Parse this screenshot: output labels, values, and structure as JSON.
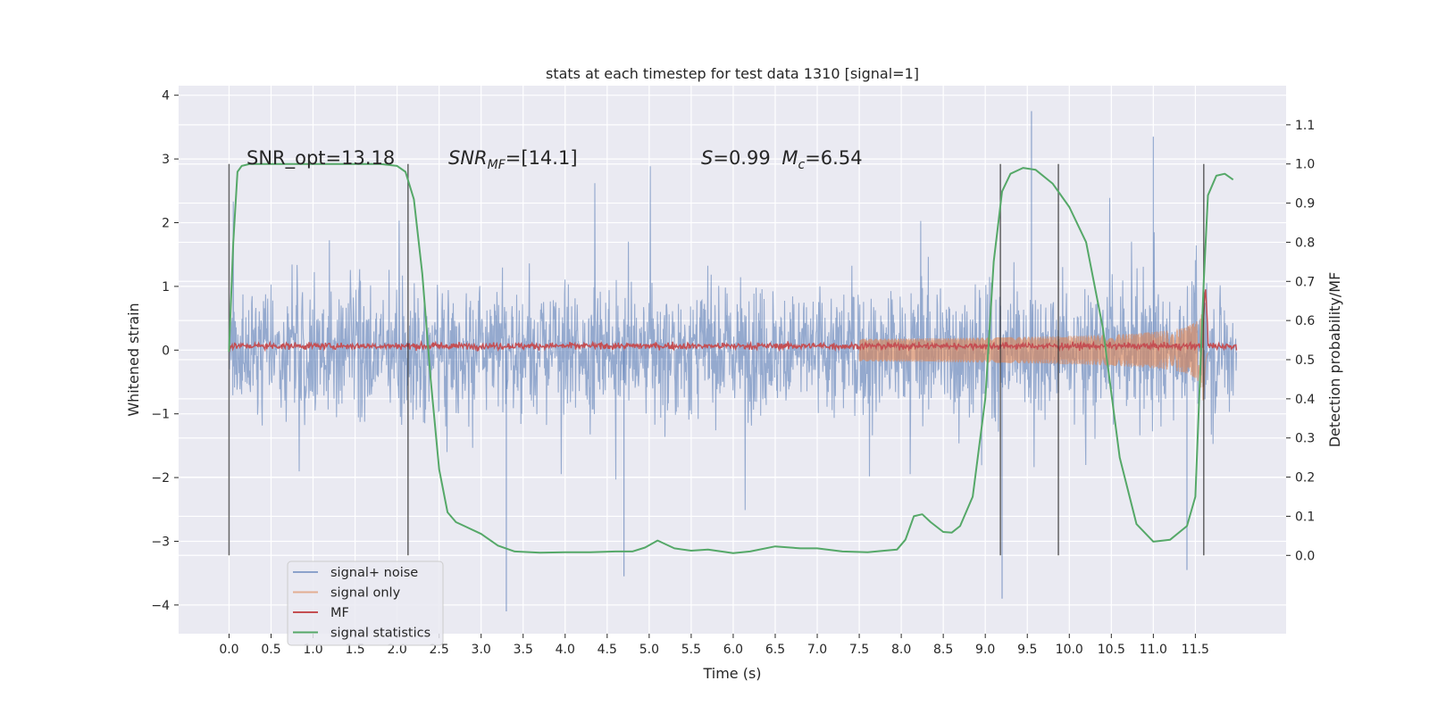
{
  "chart_data": {
    "type": "line",
    "title": "stats at each timestep for test data 1310 [signal=1]",
    "xlabel": "Time (s)",
    "ylabel_left": "Whitened strain",
    "ylabel_right": "Detection probability/MF",
    "xlim": [
      -0.6,
      12.58
    ],
    "ylim_left": [
      -4.45,
      4.15
    ],
    "ylim_right": [
      -0.2,
      1.2
    ],
    "x_ticks": [
      0.0,
      0.5,
      1.0,
      1.5,
      2.0,
      2.5,
      3.0,
      3.5,
      4.0,
      4.5,
      5.0,
      5.5,
      6.0,
      6.5,
      7.0,
      7.5,
      8.0,
      8.5,
      9.0,
      9.5,
      10.0,
      10.5,
      11.0,
      11.5
    ],
    "x_tick_labels": [
      "0.0",
      "0.5",
      "1.0",
      "1.5",
      "2.0",
      "2.5",
      "3.0",
      "3.5",
      "4.0",
      "4.5",
      "5.0",
      "5.5",
      "6.0",
      "6.5",
      "7.0",
      "7.5",
      "8.0",
      "8.5",
      "9.0",
      "9.5",
      "10.0",
      "10.5",
      "11.0",
      "11.5"
    ],
    "y_left_ticks": [
      -4,
      -3,
      -2,
      -1,
      0,
      1,
      2,
      3,
      4
    ],
    "y_left_tick_labels": [
      "−4",
      "−3",
      "−2",
      "−1",
      "0",
      "1",
      "2",
      "3",
      "4"
    ],
    "y_right_ticks": [
      0.0,
      0.1,
      0.2,
      0.3,
      0.4,
      0.5,
      0.6,
      0.7,
      0.8,
      0.9,
      1.0,
      1.1
    ],
    "y_right_tick_labels": [
      "0.0",
      "0.1",
      "0.2",
      "0.3",
      "0.4",
      "0.5",
      "0.6",
      "0.7",
      "0.8",
      "0.9",
      "1.0",
      "1.1"
    ],
    "grid": true,
    "legend_position": "lower-left",
    "annotations": [
      {
        "text": "SNR_opt=13.18",
        "x": 0.2,
        "y": 3.0
      },
      {
        "text": "SNR_MF=[14.1]",
        "x": 2.6,
        "y": 3.0
      },
      {
        "text": "S=0.99  M_c=6.54",
        "x": 5.6,
        "y": 3.0
      }
    ],
    "vertical_markers": [
      0.0,
      2.13,
      9.18,
      9.87,
      11.6
    ],
    "vertical_markers_range_right": [
      0.0,
      1.0
    ],
    "series": [
      {
        "name": "signal+ noise",
        "axis": "left",
        "color": "#4c72b0",
        "style": "noise-band",
        "x_range": [
          0.0,
          11.99
        ],
        "amplitude_envelope": 1.9,
        "max": 3.75,
        "min": -4.1
      },
      {
        "name": "signal only",
        "axis": "left",
        "color": "#dd8452",
        "style": "chirp",
        "start_time": 7.5,
        "merger_time": 11.6,
        "end_time": 11.65,
        "peak_amplitude": 1.0
      },
      {
        "name": "MF",
        "axis": "right",
        "color": "#c44e52",
        "style": "noisy",
        "x_range": [
          0.0,
          11.99
        ],
        "baseline": 0.535,
        "spike_time": 11.62,
        "spike_value": 0.69
      },
      {
        "name": "signal statistics",
        "axis": "right",
        "color": "#55a868",
        "style": "line",
        "x": [
          0.0,
          0.05,
          0.1,
          0.15,
          0.25,
          0.5,
          1.0,
          1.5,
          1.8,
          2.0,
          2.1,
          2.2,
          2.3,
          2.4,
          2.5,
          2.6,
          2.7,
          2.8,
          3.0,
          3.2,
          3.4,
          3.7,
          4.0,
          4.3,
          4.6,
          4.8,
          4.95,
          5.1,
          5.3,
          5.5,
          5.7,
          6.0,
          6.2,
          6.5,
          6.8,
          7.0,
          7.3,
          7.6,
          7.8,
          7.95,
          8.05,
          8.15,
          8.25,
          8.35,
          8.5,
          8.6,
          8.7,
          8.85,
          9.0,
          9.1,
          9.2,
          9.3,
          9.45,
          9.6,
          9.8,
          10.0,
          10.2,
          10.4,
          10.6,
          10.8,
          11.0,
          11.2,
          11.4,
          11.5,
          11.6,
          11.65,
          11.75,
          11.85,
          11.95
        ],
        "y": [
          0.52,
          0.8,
          0.98,
          0.995,
          1.0,
          1.0,
          1.0,
          1.0,
          1.0,
          0.995,
          0.98,
          0.91,
          0.72,
          0.45,
          0.22,
          0.11,
          0.085,
          0.075,
          0.055,
          0.025,
          0.01,
          0.007,
          0.008,
          0.008,
          0.01,
          0.01,
          0.02,
          0.038,
          0.018,
          0.012,
          0.015,
          0.006,
          0.01,
          0.023,
          0.018,
          0.018,
          0.01,
          0.008,
          0.012,
          0.015,
          0.04,
          0.1,
          0.105,
          0.085,
          0.06,
          0.058,
          0.075,
          0.15,
          0.4,
          0.75,
          0.93,
          0.975,
          0.99,
          0.985,
          0.95,
          0.89,
          0.8,
          0.58,
          0.25,
          0.08,
          0.035,
          0.04,
          0.075,
          0.15,
          0.7,
          0.92,
          0.97,
          0.975,
          0.96
        ]
      }
    ]
  }
}
